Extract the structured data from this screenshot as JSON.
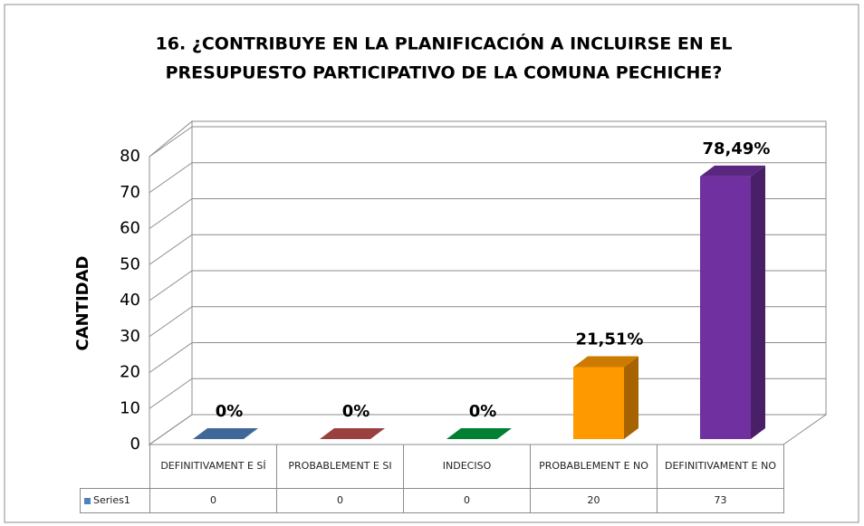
{
  "chart_data": {
    "type": "bar3d",
    "title": [
      "16. ¿CONTRIBUYE EN LA PLANIFICACIÓN A INCLUIRSE EN EL",
      "PRESUPUESTO PARTICIPATIVO DE LA COMUNA PECHICHE?"
    ],
    "y_label": "CANTIDAD",
    "categories": [
      "DEFINITIVAMENT E SÍ",
      "PROBABLEMENT E SI",
      "INDECISO",
      "PROBABLEMENT E NO",
      "DEFINITIVAMENT E NO"
    ],
    "series": [
      {
        "name": "Series1",
        "color": "#4f81bd",
        "values": [
          0,
          0,
          0,
          20,
          73
        ]
      }
    ],
    "bar_colors": [
      "#4f81bd",
      "#c0504d",
      "#00a040",
      "#ff9900",
      "#7030a0"
    ],
    "percent_labels": [
      "0%",
      "0%",
      "0%",
      "21,51%",
      "78,49%"
    ],
    "ylim": [
      0,
      80
    ],
    "yticks": [
      0,
      10,
      20,
      30,
      40,
      50,
      60,
      70,
      80
    ],
    "grid": true,
    "data_table": true
  }
}
